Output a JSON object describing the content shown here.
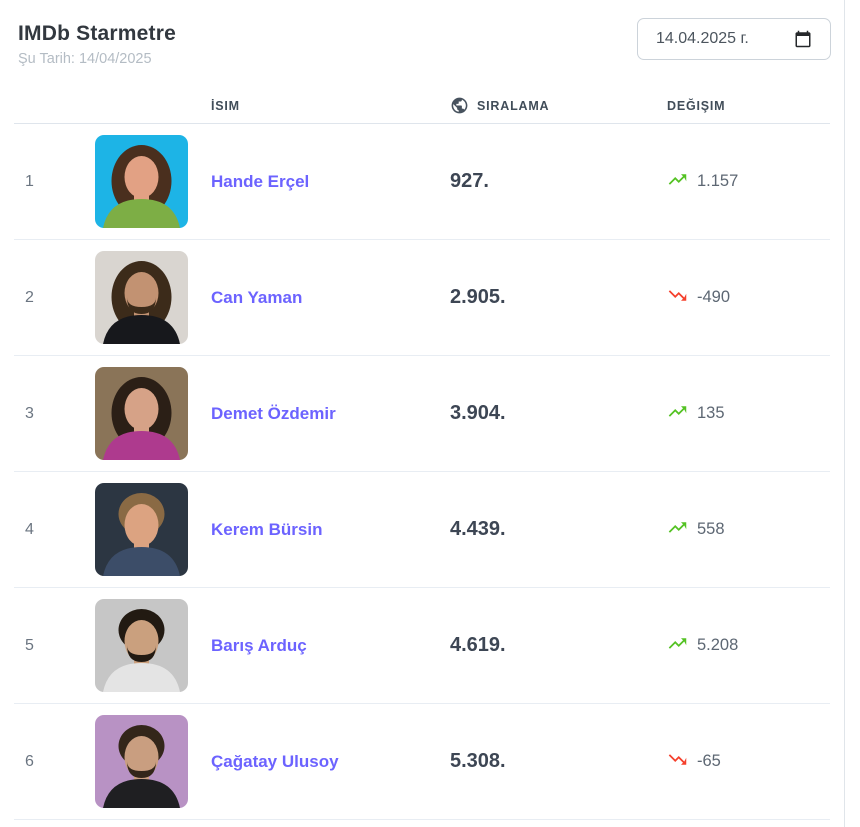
{
  "header": {
    "title": "IMDb Starmetre",
    "subtitle": "Şu Tarih: 14/04/2025",
    "date_input": {
      "value": "14.04.2025 г.",
      "icon": "calendar-icon"
    }
  },
  "table": {
    "columns": {
      "name": "İSIM",
      "ranking": "SIRALAMA",
      "change": "DEĞIŞIM"
    },
    "ranking_header_icon": "globe-icon",
    "rows": [
      {
        "rank": "1",
        "name": "Hande Erçel",
        "ranking": "927.",
        "change": "1.157",
        "direction": "up",
        "photo_palette": {
          "bg": "#1db4e6",
          "hair": "#4a2f1e",
          "skin": "#e2a184",
          "top": "#7dae45",
          "hair_style": "long",
          "beard": false
        }
      },
      {
        "rank": "2",
        "name": "Can Yaman",
        "ranking": "2.905.",
        "change": "-490",
        "direction": "down",
        "photo_palette": {
          "bg": "#d9d5d0",
          "hair": "#3c2b1a",
          "skin": "#c29272",
          "top": "#17181c",
          "hair_style": "long",
          "beard": true
        }
      },
      {
        "rank": "3",
        "name": "Demet Özdemir",
        "ranking": "3.904.",
        "change": "135",
        "direction": "up",
        "photo_palette": {
          "bg": "#8a7458",
          "hair": "#2b1f16",
          "skin": "#d6a287",
          "top": "#ae3a8e",
          "hair_style": "long",
          "beard": false
        }
      },
      {
        "rank": "4",
        "name": "Kerem Bürsin",
        "ranking": "4.439.",
        "change": "558",
        "direction": "up",
        "photo_palette": {
          "bg": "#2c3642",
          "hair": "#8a6a44",
          "skin": "#dca381",
          "top": "#3c4d68",
          "hair_style": "short",
          "beard": false
        }
      },
      {
        "rank": "5",
        "name": "Barış Arduç",
        "ranking": "4.619.",
        "change": "5.208",
        "direction": "up",
        "photo_palette": {
          "bg": "#c6c6c6",
          "hair": "#221a12",
          "skin": "#caa07e",
          "top": "#e4e4e4",
          "hair_style": "short",
          "beard": true
        }
      },
      {
        "rank": "6",
        "name": "Çağatay Ulusoy",
        "ranking": "5.308.",
        "change": "-65",
        "direction": "down",
        "photo_palette": {
          "bg": "#b892c4",
          "hair": "#33261a",
          "skin": "#c99e80",
          "top": "#1f1f22",
          "hair_style": "short",
          "beard": true
        }
      }
    ]
  },
  "icons": {
    "trend_up": "trending-up-icon",
    "trend_down": "trending-down-icon",
    "globe": "globe-icon",
    "calendar": "calendar-icon"
  },
  "colors": {
    "link_purple": "#6c63ff",
    "up_green": "#54c223",
    "down_red": "#f5402c",
    "ranking_text": "#3d4654",
    "header_text": "#414d59",
    "muted_text": "#5d6773",
    "divider": "#e8edf3"
  }
}
